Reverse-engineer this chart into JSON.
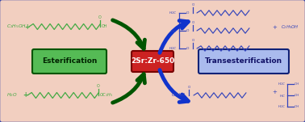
{
  "bg_color": "#f2cfc0",
  "outer_border_color": "#3344aa",
  "title": "2Sr:Zr-650",
  "esterification_label": "Esterification",
  "transesterification_label": "Transesterification",
  "green_color": "#44aa44",
  "blue_color": "#3344bb",
  "arrow_dark_green": "#005500",
  "arrow_blue": "#1133cc",
  "figsize": [
    3.78,
    1.51
  ],
  "dpi": 100
}
